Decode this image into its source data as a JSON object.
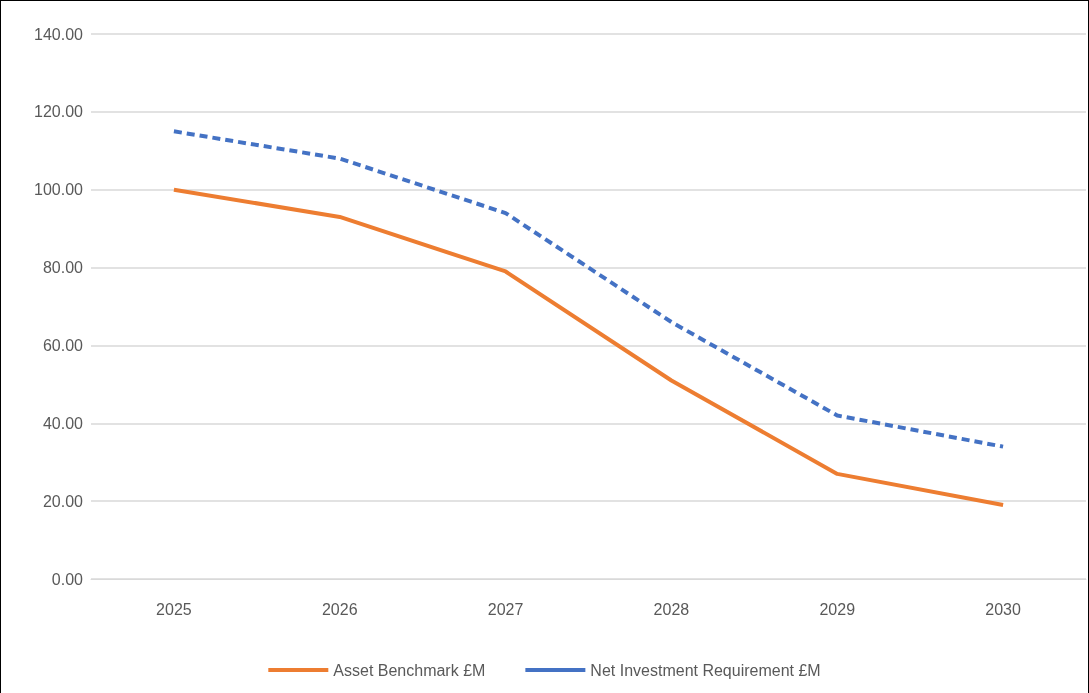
{
  "chart_data": {
    "type": "line",
    "categories": [
      "2025",
      "2026",
      "2027",
      "2028",
      "2029",
      "2030"
    ],
    "series": [
      {
        "name": "Asset Benchmark £M",
        "color": "#ed7d31",
        "line_style": "solid",
        "values": [
          100,
          93,
          79,
          51,
          27,
          19
        ]
      },
      {
        "name": "Net Investment Requirement £M",
        "color": "#4472c4",
        "line_style": "dashed",
        "values": [
          115,
          108,
          94,
          66,
          42,
          34
        ]
      }
    ],
    "ylim": [
      0,
      140
    ],
    "yticks": [
      {
        "value": 0,
        "label": "0.00"
      },
      {
        "value": 20,
        "label": "20.00"
      },
      {
        "value": 40,
        "label": "40.00"
      },
      {
        "value": 60,
        "label": "60.00"
      },
      {
        "value": 80,
        "label": "80.00"
      },
      {
        "value": 100,
        "label": "100.00"
      },
      {
        "value": 120,
        "label": "120.00"
      },
      {
        "value": 140,
        "label": "140.00"
      }
    ],
    "grid": "y",
    "legend": "bottom",
    "marker": "none"
  }
}
